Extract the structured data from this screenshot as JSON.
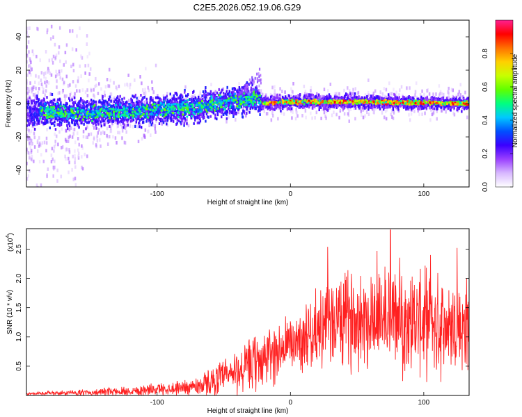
{
  "title": "C2E5.2026.052.19.06.G29",
  "chart_data": [
    {
      "type": "heatmap",
      "name": "spectrogram",
      "xlabel": "Height of straight line (km)",
      "ylabel": "Frequency (Hz)",
      "xlim": [
        -198,
        134
      ],
      "ylim": [
        -50,
        50
      ],
      "xticks": [
        -100,
        0,
        100
      ],
      "yticks": [
        -40,
        -20,
        0,
        20,
        40
      ],
      "colorbar": {
        "label": "Normalized spectral amplitude",
        "range": [
          0,
          1
        ],
        "ticks": [
          "0.0",
          "0.2",
          "0.4",
          "0.6",
          "0.8"
        ],
        "tick_values": [
          0.0,
          0.2,
          0.4,
          0.6,
          0.8
        ],
        "colors": [
          "#ffffff",
          "#d8b8ff",
          "#9a40ff",
          "#3a00ff",
          "#0050ff",
          "#00c8ff",
          "#00ff80",
          "#60ff00",
          "#c8ff00",
          "#ffd000",
          "#ff7000",
          "#ff0000",
          "#ff2090"
        ]
      },
      "ridge": [
        {
          "x": -195,
          "y": -5
        },
        {
          "x": -160,
          "y": -6
        },
        {
          "x": -130,
          "y": -5
        },
        {
          "x": -100,
          "y": -4
        },
        {
          "x": -80,
          "y": -2
        },
        {
          "x": -70,
          "y": -3
        },
        {
          "x": -60,
          "y": 0
        },
        {
          "x": -45,
          "y": 1
        },
        {
          "x": -35,
          "y": 2
        },
        {
          "x": -25,
          "y": 4
        },
        {
          "x": -22,
          "y": 0
        },
        {
          "x": 0,
          "y": 1
        },
        {
          "x": 50,
          "y": 1
        },
        {
          "x": 134,
          "y": 0
        }
      ]
    },
    {
      "type": "line",
      "name": "snr",
      "xlabel": "Height of straight line (km)",
      "ylabel": "SNR (10 * v/v)",
      "scale_note": "(x10",
      "scale_exp": "4",
      "scale_close": ")",
      "xlim": [
        -198,
        134
      ],
      "ylim": [
        0,
        2.85
      ],
      "xticks": [
        -100,
        0,
        100
      ],
      "yticks": [
        0.5,
        1.0,
        1.5,
        2.0,
        2.5
      ],
      "ytick_labels": [
        "0.5",
        "1.0",
        "1.5",
        "2.0",
        "2.5"
      ],
      "color": "#ff2020",
      "envelope": [
        {
          "x": -198,
          "mean": 0.03,
          "amp": 0.02
        },
        {
          "x": -150,
          "mean": 0.05,
          "amp": 0.05
        },
        {
          "x": -120,
          "mean": 0.08,
          "amp": 0.08
        },
        {
          "x": -90,
          "mean": 0.12,
          "amp": 0.1
        },
        {
          "x": -70,
          "mean": 0.16,
          "amp": 0.15
        },
        {
          "x": -50,
          "mean": 0.3,
          "amp": 0.3
        },
        {
          "x": -30,
          "mean": 0.5,
          "amp": 0.45
        },
        {
          "x": -10,
          "mean": 0.75,
          "amp": 0.5
        },
        {
          "x": 10,
          "mean": 1.0,
          "amp": 0.5
        },
        {
          "x": 30,
          "mean": 1.25,
          "amp": 0.7
        },
        {
          "x": 50,
          "mean": 1.35,
          "amp": 0.8
        },
        {
          "x": 70,
          "mean": 1.35,
          "amp": 0.85
        },
        {
          "x": 90,
          "mean": 1.3,
          "amp": 0.85
        },
        {
          "x": 110,
          "mean": 1.2,
          "amp": 0.8
        },
        {
          "x": 134,
          "mean": 1.15,
          "amp": 0.8
        }
      ],
      "peaks": [
        {
          "x": 75,
          "y": 2.83
        },
        {
          "x": 28,
          "y": 2.54
        },
        {
          "x": 125,
          "y": 2.52
        },
        {
          "x": 65,
          "y": 2.47
        },
        {
          "x": 105,
          "y": 2.4
        }
      ]
    }
  ]
}
